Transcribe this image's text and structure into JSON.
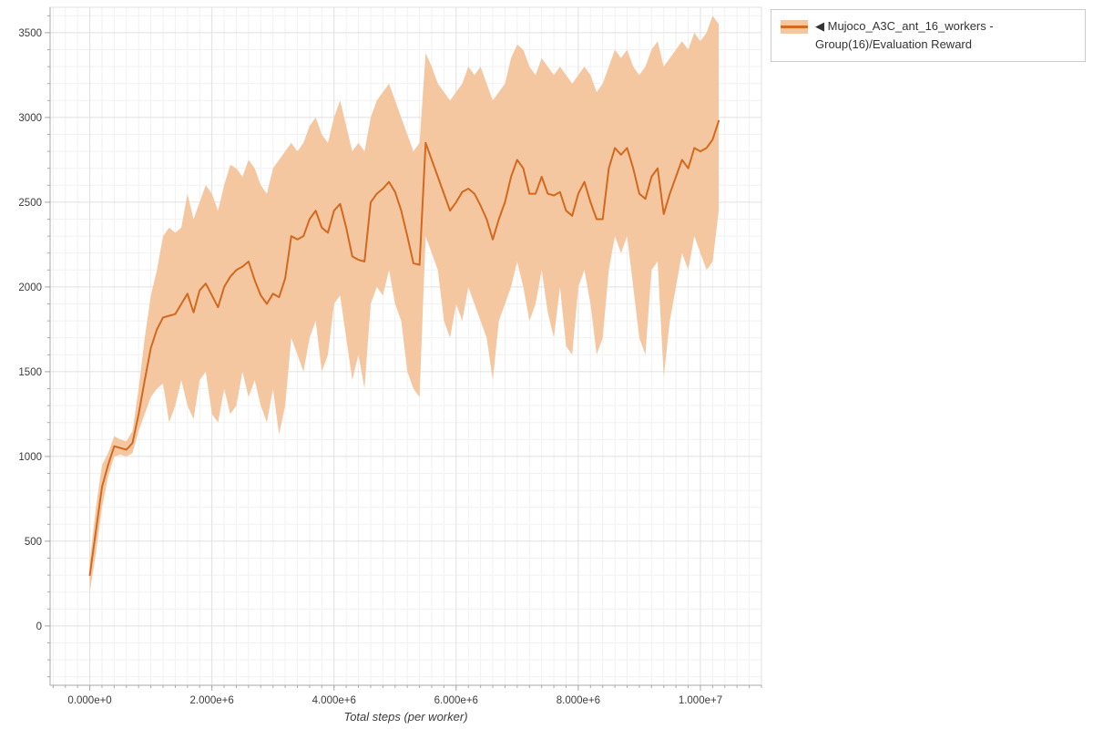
{
  "chart_data": {
    "type": "line",
    "title": "",
    "xlabel": "Total steps (per worker)",
    "ylabel": "",
    "band": "min-max envelope around mean evaluation reward",
    "xlim": [
      -650000,
      11000000
    ],
    "ylim": [
      -350,
      3650
    ],
    "grid": {
      "major": true,
      "minor": true
    },
    "x_ticks": [
      {
        "v": 0,
        "label": "0.000e+0"
      },
      {
        "v": 2000000,
        "label": "2.000e+6"
      },
      {
        "v": 4000000,
        "label": "4.000e+6"
      },
      {
        "v": 6000000,
        "label": "6.000e+6"
      },
      {
        "v": 8000000,
        "label": "8.000e+6"
      },
      {
        "v": 10000000,
        "label": "1.000e+7"
      }
    ],
    "y_ticks": [
      {
        "v": 0,
        "label": "0"
      },
      {
        "v": 500,
        "label": "500"
      },
      {
        "v": 1000,
        "label": "1000"
      },
      {
        "v": 1500,
        "label": "1500"
      },
      {
        "v": 2000,
        "label": "2000"
      },
      {
        "v": 2500,
        "label": "2500"
      },
      {
        "v": 3000,
        "label": "3000"
      },
      {
        "v": 3500,
        "label": "3500"
      }
    ],
    "colors": {
      "line": "#d2691e",
      "band": "#f4c7a1",
      "grid_major": "#e0e0e0",
      "grid_minor": "#f1f1f1",
      "axis": "#aaaaaa",
      "text": "#3b3b3b"
    },
    "legend": {
      "position": "top-right-outside",
      "entries": [
        {
          "label": "◀ Mujoco_A3C_ant_16_workers - Group(16)/Evaluation Reward",
          "line_color": "#d2691e",
          "band_color": "#f4c7a1"
        }
      ]
    },
    "series": [
      {
        "name": "Mujoco_A3C_ant_16_workers - Group(16)/Evaluation Reward",
        "x_scale": 1000000,
        "x_millions": [
          0,
          0.1,
          0.2,
          0.3,
          0.4,
          0.5,
          0.6,
          0.7,
          0.8,
          0.9,
          1,
          1.1,
          1.2,
          1.3,
          1.4,
          1.5,
          1.6,
          1.7,
          1.8,
          1.9,
          2,
          2.1,
          2.2,
          2.3,
          2.4,
          2.5,
          2.6,
          2.7,
          2.8,
          2.9,
          3,
          3.1,
          3.2,
          3.3,
          3.4,
          3.5,
          3.6,
          3.7,
          3.8,
          3.9,
          4,
          4.1,
          4.2,
          4.3,
          4.4,
          4.5,
          4.6,
          4.7,
          4.8,
          4.9,
          5,
          5.1,
          5.2,
          5.3,
          5.4,
          5.5,
          5.6,
          5.7,
          5.8,
          5.9,
          6,
          6.1,
          6.2,
          6.3,
          6.4,
          6.5,
          6.6,
          6.7,
          6.8,
          6.9,
          7,
          7.1,
          7.2,
          7.3,
          7.4,
          7.5,
          7.6,
          7.7,
          7.8,
          7.9,
          8,
          8.1,
          8.2,
          8.3,
          8.4,
          8.5,
          8.6,
          8.7,
          8.8,
          8.9,
          9,
          9.1,
          9.2,
          9.3,
          9.4,
          9.5,
          9.6,
          9.7,
          9.8,
          9.9,
          10,
          10.1,
          10.2,
          10.3
        ],
        "mean": [
          300,
          560,
          820,
          950,
          1060,
          1050,
          1040,
          1080,
          1250,
          1450,
          1640,
          1750,
          1820,
          1830,
          1840,
          1900,
          1960,
          1850,
          1980,
          2020,
          1950,
          1880,
          2000,
          2060,
          2100,
          2120,
          2150,
          2040,
          1950,
          1900,
          1960,
          1940,
          2050,
          2300,
          2280,
          2300,
          2400,
          2450,
          2350,
          2320,
          2450,
          2490,
          2350,
          2180,
          2160,
          2150,
          2500,
          2550,
          2580,
          2620,
          2560,
          2450,
          2300,
          2140,
          2130,
          2850,
          2750,
          2650,
          2550,
          2450,
          2500,
          2560,
          2580,
          2550,
          2480,
          2400,
          2280,
          2400,
          2500,
          2650,
          2750,
          2700,
          2550,
          2550,
          2650,
          2550,
          2540,
          2560,
          2450,
          2420,
          2550,
          2620,
          2500,
          2400,
          2400,
          2700,
          2820,
          2780,
          2820,
          2700,
          2550,
          2520,
          2650,
          2700,
          2430,
          2550,
          2650,
          2750,
          2700,
          2820,
          2800,
          2820,
          2870,
          2980
        ],
        "band_lower": [
          200,
          430,
          700,
          880,
          1000,
          1010,
          1000,
          1020,
          1150,
          1250,
          1350,
          1400,
          1430,
          1200,
          1300,
          1450,
          1300,
          1220,
          1450,
          1500,
          1250,
          1200,
          1400,
          1250,
          1300,
          1500,
          1350,
          1450,
          1300,
          1200,
          1400,
          1130,
          1300,
          1700,
          1600,
          1500,
          1700,
          1800,
          1500,
          1600,
          1900,
          1950,
          1700,
          1450,
          1600,
          1400,
          1900,
          2000,
          1950,
          2100,
          1900,
          1800,
          1500,
          1400,
          1350,
          2300,
          2200,
          2100,
          1800,
          1700,
          1900,
          1800,
          2000,
          1900,
          1800,
          1700,
          1450,
          1800,
          1900,
          2000,
          2150,
          2000,
          1800,
          1900,
          2100,
          1850,
          1700,
          2000,
          1650,
          1600,
          2000,
          2100,
          1900,
          1600,
          1700,
          2100,
          2300,
          2200,
          2300,
          2000,
          1700,
          1600,
          2100,
          2150,
          1470,
          1800,
          2000,
          2200,
          2100,
          2300,
          2200,
          2100,
          2150,
          2450
        ],
        "band_upper": [
          380,
          700,
          950,
          1020,
          1120,
          1100,
          1090,
          1150,
          1400,
          1700,
          1950,
          2100,
          2300,
          2350,
          2320,
          2350,
          2550,
          2400,
          2500,
          2600,
          2550,
          2450,
          2600,
          2720,
          2700,
          2650,
          2750,
          2700,
          2600,
          2550,
          2700,
          2750,
          2800,
          2850,
          2800,
          2850,
          2950,
          3000,
          2900,
          2850,
          3000,
          3100,
          2950,
          2800,
          2850,
          2800,
          3000,
          3100,
          3150,
          3200,
          3100,
          3000,
          2900,
          2800,
          2850,
          3380,
          3300,
          3200,
          3150,
          3100,
          3150,
          3200,
          3300,
          3250,
          3300,
          3200,
          3100,
          3150,
          3200,
          3350,
          3430,
          3400,
          3300,
          3250,
          3350,
          3300,
          3250,
          3300,
          3250,
          3200,
          3250,
          3300,
          3250,
          3150,
          3200,
          3300,
          3400,
          3350,
          3400,
          3300,
          3250,
          3300,
          3400,
          3450,
          3300,
          3350,
          3400,
          3450,
          3400,
          3500,
          3450,
          3500,
          3600,
          3550
        ]
      }
    ]
  }
}
